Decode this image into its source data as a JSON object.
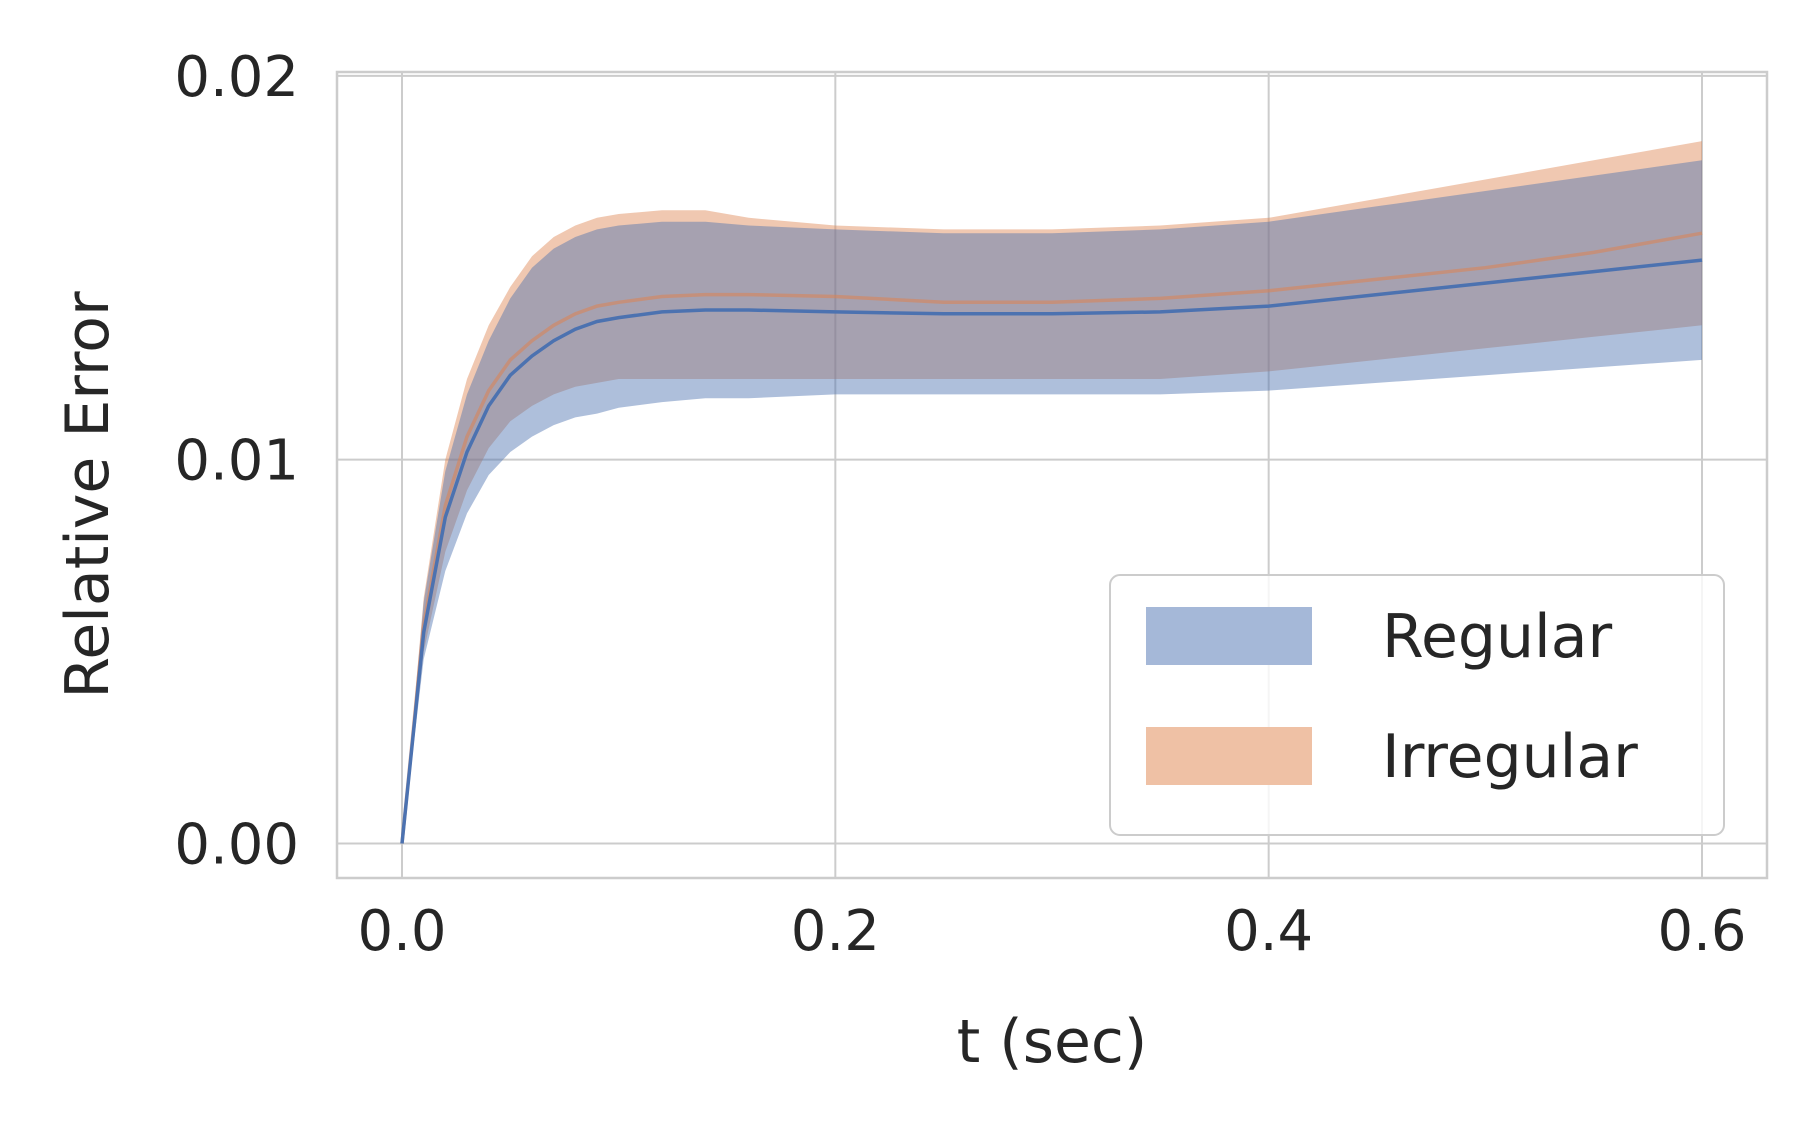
{
  "chart_data": {
    "type": "area",
    "xlabel": "t (sec)",
    "ylabel": "Relative Error",
    "xlim": [
      -0.03,
      0.63
    ],
    "ylim": [
      -0.0009,
      0.0201
    ],
    "xticks": [
      0.0,
      0.2,
      0.4,
      0.6
    ],
    "xtick_labels": [
      "0.0",
      "0.2",
      "0.4",
      "0.6"
    ],
    "yticks": [
      0.0,
      0.01,
      0.02
    ],
    "ytick_labels": [
      "0.00",
      "0.01",
      "0.02"
    ],
    "grid": true,
    "legend_position": "lower-right",
    "x": [
      0,
      0.01,
      0.02,
      0.03,
      0.04,
      0.05,
      0.06,
      0.07,
      0.08,
      0.09,
      0.1,
      0.12,
      0.14,
      0.16,
      0.2,
      0.25,
      0.3,
      0.35,
      0.4,
      0.45,
      0.5,
      0.55,
      0.6
    ],
    "series": [
      {
        "name": "Regular",
        "color": "#4c72b0",
        "fill_color": "#a5b8d8",
        "mean": [
          0.0,
          0.0055,
          0.0085,
          0.0102,
          0.0114,
          0.0122,
          0.0127,
          0.0131,
          0.0134,
          0.0136,
          0.0137,
          0.01385,
          0.0139,
          0.0139,
          0.01385,
          0.0138,
          0.0138,
          0.01385,
          0.014,
          0.0143,
          0.0146,
          0.0149,
          0.0152
        ],
        "lower": [
          0.0,
          0.0048,
          0.0071,
          0.0086,
          0.0096,
          0.0102,
          0.0106,
          0.0109,
          0.0111,
          0.0112,
          0.01135,
          0.0115,
          0.0116,
          0.0116,
          0.0117,
          0.0117,
          0.0117,
          0.0117,
          0.0118,
          0.012,
          0.0122,
          0.0124,
          0.0126
        ],
        "upper": [
          0.0,
          0.0063,
          0.0097,
          0.0117,
          0.0131,
          0.0142,
          0.015,
          0.0155,
          0.0158,
          0.016,
          0.0161,
          0.0162,
          0.0162,
          0.0161,
          0.016,
          0.0159,
          0.0159,
          0.016,
          0.0162,
          0.0166,
          0.017,
          0.0174,
          0.0178
        ]
      },
      {
        "name": "Irregular",
        "color": "#dd8452",
        "fill_color": "#efc1a5",
        "mean": [
          0.0,
          0.0057,
          0.0088,
          0.0106,
          0.0118,
          0.0126,
          0.0131,
          0.0135,
          0.0138,
          0.014,
          0.0141,
          0.01425,
          0.0143,
          0.0143,
          0.01425,
          0.0141,
          0.0141,
          0.0142,
          0.0144,
          0.0147,
          0.015,
          0.0154,
          0.0159
        ],
        "lower": [
          0.0,
          0.005,
          0.0076,
          0.0092,
          0.0103,
          0.011,
          0.0114,
          0.0117,
          0.0119,
          0.012,
          0.0121,
          0.0121,
          0.0121,
          0.0121,
          0.0121,
          0.0121,
          0.0121,
          0.0121,
          0.0123,
          0.0126,
          0.0129,
          0.0132,
          0.0135
        ],
        "upper": [
          0.0,
          0.0064,
          0.01,
          0.0121,
          0.0135,
          0.0145,
          0.0153,
          0.0158,
          0.0161,
          0.0163,
          0.0164,
          0.0165,
          0.0165,
          0.0163,
          0.0161,
          0.016,
          0.016,
          0.0161,
          0.0163,
          0.0168,
          0.0173,
          0.0178,
          0.0183
        ]
      }
    ]
  }
}
